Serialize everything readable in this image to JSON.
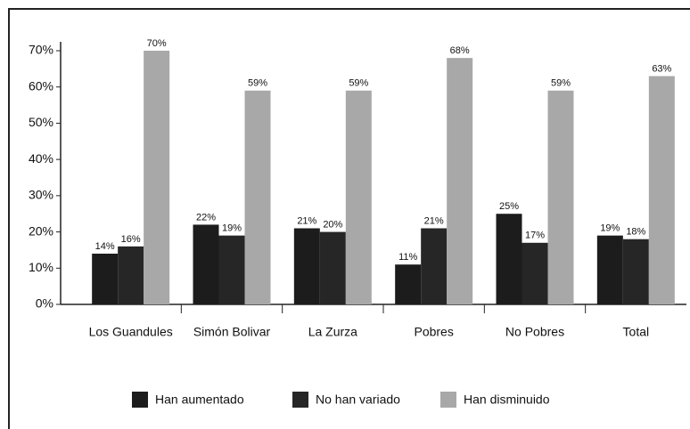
{
  "chart_data": {
    "type": "bar",
    "categories": [
      "Los Guandules",
      "Simón Bolivar",
      "La Zurza",
      "Pobres",
      "No Pobres",
      "Total"
    ],
    "series": [
      {
        "name": "Han aumentado",
        "color": "#1c1c1c",
        "values": [
          14,
          22,
          21,
          11,
          25,
          19
        ],
        "value_labels": [
          "14%",
          "22%",
          "21%",
          "11%",
          "25%",
          "19%"
        ]
      },
      {
        "name": "No han variado",
        "color": "#262626",
        "values": [
          16,
          19,
          20,
          21,
          17,
          18
        ],
        "value_labels": [
          "16%",
          "19%",
          "20%",
          "21%",
          "17%",
          "18%"
        ]
      },
      {
        "name": "Han disminuido",
        "color": "#a8a8a8",
        "values": [
          70,
          59,
          59,
          68,
          59,
          63
        ],
        "value_labels": [
          "70%",
          "59%",
          "59%",
          "68%",
          "59%",
          "63%"
        ]
      }
    ],
    "ylim": [
      0,
      70
    ],
    "yticks": [
      {
        "value": 0,
        "label": "0%"
      },
      {
        "value": 10,
        "label": "10%"
      },
      {
        "value": 20,
        "label": "20%"
      },
      {
        "value": 30,
        "label": "30%"
      },
      {
        "value": 40,
        "label": "40%"
      },
      {
        "value": 50,
        "label": "50%"
      },
      {
        "value": 60,
        "label": "60%"
      },
      {
        "value": 70,
        "label": "70%"
      }
    ],
    "legend": "bottom"
  }
}
